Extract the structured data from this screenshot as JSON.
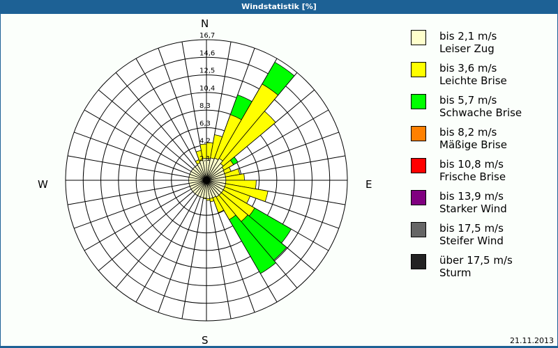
{
  "window": {
    "title": "Windstatistik [%]",
    "date": "21.11.2013"
  },
  "compass": {
    "N": "N",
    "E": "E",
    "S": "S",
    "W": "W"
  },
  "colors": {
    "title_bar": "#1d6195",
    "grid": "#000000",
    "bins": [
      "#ffffcc",
      "#ffff00",
      "#00ff00",
      "#ff8000",
      "#ff0000",
      "#800080",
      "#666666",
      "#222222"
    ]
  },
  "legend": [
    {
      "range": "bis 2,1 m/s",
      "name": "Leiser Zug",
      "color": "#ffffcc"
    },
    {
      "range": "bis 3,6 m/s",
      "name": "Leichte Brise",
      "color": "#ffff00"
    },
    {
      "range": "bis 5,7 m/s",
      "name": "Schwache Brise",
      "color": "#00ff00"
    },
    {
      "range": "bis 8,2 m/s",
      "name": "Mäßige Brise",
      "color": "#ff8000"
    },
    {
      "range": "bis 10,8 m/s",
      "name": "Frische Brise",
      "color": "#ff0000"
    },
    {
      "range": "bis 13,9 m/s",
      "name": "Starker Wind",
      "color": "#800080"
    },
    {
      "range": "bis 17,5 m/s",
      "name": "Steifer Wind",
      "color": "#666666"
    },
    {
      "range": "über 17,5 m/s",
      "name": "Sturm",
      "color": "#222222"
    }
  ],
  "chart_data": {
    "type": "wind-rose",
    "title": "Windstatistik [%]",
    "unit": "%",
    "radial_ticks": [
      "2,1",
      "4,2",
      "6,3",
      "8,3",
      "10,4",
      "12,5",
      "14,6",
      "16,7"
    ],
    "radial_max": 16.7,
    "sector_width_deg": 10,
    "direction_labels": [
      "N",
      "E",
      "S",
      "W"
    ],
    "series_names": [
      "bis 2,1 m/s",
      "bis 3,6 m/s",
      "bis 5,7 m/s"
    ],
    "sectors": [
      {
        "from": 0,
        "to": 10,
        "cum": [
          2.6,
          4.5,
          4.5
        ]
      },
      {
        "from": 10,
        "to": 20,
        "cum": [
          2.7,
          5.5,
          5.5
        ]
      },
      {
        "from": 20,
        "to": 30,
        "cum": [
          2.8,
          8.3,
          10.8
        ]
      },
      {
        "from": 30,
        "to": 40,
        "cum": [
          3.0,
          13.2,
          16.2
        ]
      },
      {
        "from": 40,
        "to": 50,
        "cum": [
          2.6,
          10.7,
          10.7
        ]
      },
      {
        "from": 50,
        "to": 60,
        "cum": [
          2.4,
          3.7,
          4.3
        ]
      },
      {
        "from": 60,
        "to": 70,
        "cum": [
          2.3,
          3.1,
          3.1
        ]
      },
      {
        "from": 70,
        "to": 80,
        "cum": [
          2.3,
          4.0,
          4.0
        ]
      },
      {
        "from": 80,
        "to": 90,
        "cum": [
          2.3,
          4.5,
          4.5
        ]
      },
      {
        "from": 90,
        "to": 100,
        "cum": [
          2.3,
          5.9,
          5.9
        ]
      },
      {
        "from": 100,
        "to": 110,
        "cum": [
          2.3,
          7.4,
          7.4
        ]
      },
      {
        "from": 110,
        "to": 120,
        "cum": [
          2.3,
          5.5,
          5.5
        ]
      },
      {
        "from": 120,
        "to": 130,
        "cum": [
          2.3,
          6.6,
          11.6
        ]
      },
      {
        "from": 130,
        "to": 140,
        "cum": [
          2.3,
          6.4,
          12.4
        ]
      },
      {
        "from": 140,
        "to": 150,
        "cum": [
          2.3,
          5.4,
          12.8
        ]
      },
      {
        "from": 150,
        "to": 160,
        "cum": [
          2.2,
          4.1,
          4.1
        ]
      },
      {
        "from": 160,
        "to": 170,
        "cum": [
          2.2,
          2.6,
          2.6
        ]
      },
      {
        "from": 170,
        "to": 180,
        "cum": [
          2.2,
          2.4,
          2.4
        ]
      },
      {
        "from": 180,
        "to": 190,
        "cum": [
          2.1,
          2.2,
          2.2
        ]
      },
      {
        "from": 190,
        "to": 200,
        "cum": [
          2.1,
          2.1,
          2.1
        ]
      },
      {
        "from": 200,
        "to": 210,
        "cum": [
          2.1,
          2.1,
          2.1
        ]
      },
      {
        "from": 210,
        "to": 220,
        "cum": [
          2.1,
          2.1,
          2.1
        ]
      },
      {
        "from": 220,
        "to": 230,
        "cum": [
          2.1,
          2.1,
          2.1
        ]
      },
      {
        "from": 230,
        "to": 240,
        "cum": [
          2.1,
          2.1,
          2.1
        ]
      },
      {
        "from": 240,
        "to": 250,
        "cum": [
          2.1,
          2.1,
          2.1
        ]
      },
      {
        "from": 250,
        "to": 260,
        "cum": [
          2.1,
          2.1,
          2.1
        ]
      },
      {
        "from": 260,
        "to": 270,
        "cum": [
          2.1,
          2.1,
          2.1
        ]
      },
      {
        "from": 270,
        "to": 280,
        "cum": [
          2.1,
          2.1,
          2.1
        ]
      },
      {
        "from": 280,
        "to": 290,
        "cum": [
          2.1,
          2.1,
          2.1
        ]
      },
      {
        "from": 290,
        "to": 300,
        "cum": [
          2.1,
          2.1,
          2.1
        ]
      },
      {
        "from": 300,
        "to": 310,
        "cum": [
          2.1,
          2.1,
          2.1
        ]
      },
      {
        "from": 310,
        "to": 320,
        "cum": [
          2.1,
          2.1,
          2.1
        ]
      },
      {
        "from": 320,
        "to": 330,
        "cum": [
          2.1,
          2.1,
          2.1
        ]
      },
      {
        "from": 330,
        "to": 340,
        "cum": [
          2.2,
          2.6,
          2.6
        ]
      },
      {
        "from": 340,
        "to": 350,
        "cum": [
          2.4,
          3.6,
          3.6
        ]
      },
      {
        "from": 350,
        "to": 360,
        "cum": [
          2.6,
          4.3,
          4.3
        ]
      }
    ]
  }
}
